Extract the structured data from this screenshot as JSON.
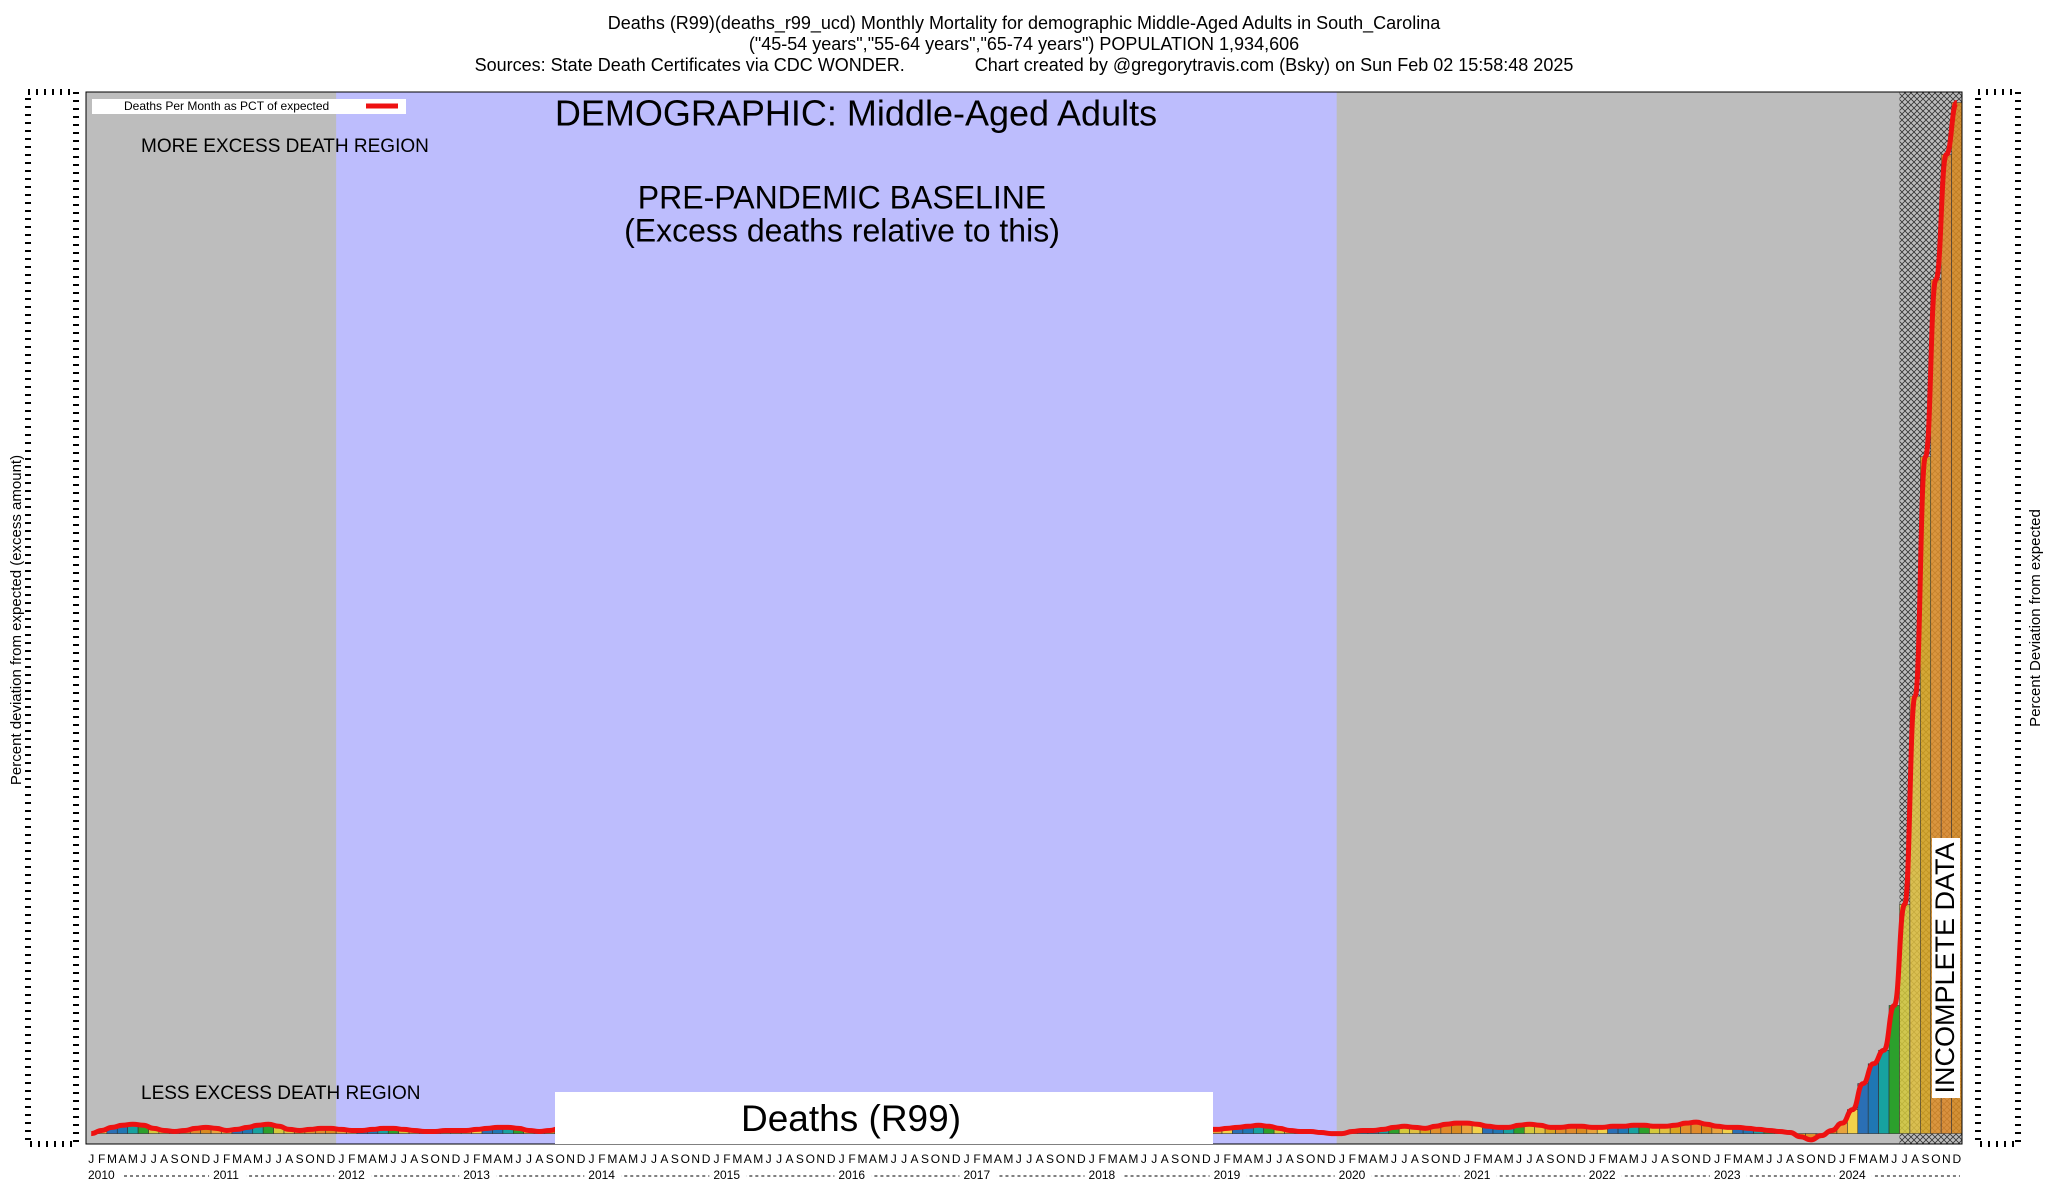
{
  "chart_data": {
    "type": "line",
    "title_lines": [
      "Deaths (R99)(deaths_r99_ucd) Monthly Mortality for demographic Middle-Aged Adults in South_Carolina",
      "(\"45-54 years\",\"55-64 years\",\"65-74 years\") POPULATION 1,934,606",
      "Sources: State Death Certificates via CDC WONDER.              Chart created by @gregorytravis.com (Bsky) on Sun Feb 02 15:58:48 2025"
    ],
    "y_label": "Percent deviation from expected (excess amount)",
    "y2_label": "Percent Deviation from expected",
    "legend_label": "Deaths Per Month as PCT of expected",
    "annotations": {
      "demographic": "DEMOGRAPHIC: Middle-Aged Adults",
      "more": "MORE EXCESS DEATH REGION",
      "baseline_1": "PRE-PANDEMIC BASELINE",
      "baseline_2": "(Excess deaths relative to this)",
      "less": "LESS EXCESS DEATH REGION",
      "cause": "Deaths (R99)",
      "incomplete": "INCOMPLETE DATA"
    },
    "months": [
      "J",
      "F",
      "M",
      "A",
      "M",
      "J",
      "J",
      "A",
      "S",
      "O",
      "N",
      "D"
    ],
    "years": [
      2010,
      2011,
      2012,
      2013,
      2014,
      2015,
      2016,
      2017,
      2018,
      2019,
      2020,
      2021,
      2022,
      2023,
      2024
    ],
    "regions": {
      "baseline_from": "2012-01",
      "baseline_to": "2019-12",
      "incomplete_from": "2024-07"
    },
    "line_color": "#ee1111",
    "bar_colors": [
      "#e8a33c",
      "#f2d14a",
      "#2a6fb5",
      "#1f77b4",
      "#17a2a0",
      "#2ca02c",
      "#d4c93c",
      "#e0c040",
      "#d9a520",
      "#e0902a",
      "#e08a2a",
      "#d98a20"
    ],
    "ylim": [
      -1,
      100
    ],
    "values": [
      0.0,
      0.3,
      0.6,
      0.8,
      0.9,
      0.8,
      0.5,
      0.3,
      0.2,
      0.3,
      0.5,
      0.6,
      0.5,
      0.3,
      0.4,
      0.6,
      0.8,
      0.9,
      0.7,
      0.4,
      0.3,
      0.4,
      0.5,
      0.5,
      0.4,
      0.3,
      0.3,
      0.4,
      0.5,
      0.5,
      0.4,
      0.3,
      0.2,
      0.2,
      0.3,
      0.3,
      0.3,
      0.4,
      0.5,
      0.6,
      0.6,
      0.5,
      0.3,
      0.2,
      0.3,
      0.5,
      0.7,
      0.8,
      0.7,
      0.5,
      0.3,
      0.2,
      0.2,
      0.3,
      0.4,
      0.5,
      0.4,
      0.3,
      0.2,
      0.2,
      0.2,
      0.3,
      0.4,
      0.4,
      0.3,
      0.2,
      0.1,
      0.1,
      0.2,
      0.3,
      0.3,
      0.2,
      0.1,
      0.0,
      -0.2,
      -0.4,
      -0.3,
      0.0,
      0.2,
      0.3,
      0.3,
      0.2,
      0.2,
      0.3,
      0.3,
      0.2,
      0.2,
      0.3,
      0.4,
      0.4,
      0.3,
      0.2,
      0.2,
      0.3,
      0.4,
      0.4,
      0.3,
      0.2,
      0.2,
      0.3,
      0.4,
      0.5,
      0.5,
      0.4,
      0.3,
      0.3,
      0.4,
      0.4,
      0.4,
      0.5,
      0.6,
      0.7,
      0.8,
      0.7,
      0.5,
      0.3,
      0.2,
      0.2,
      0.1,
      0.0,
      0.0,
      0.2,
      0.3,
      0.3,
      0.4,
      0.6,
      0.7,
      0.6,
      0.5,
      0.7,
      0.9,
      1.0,
      1.0,
      0.9,
      0.7,
      0.6,
      0.6,
      0.8,
      0.9,
      0.8,
      0.6,
      0.6,
      0.7,
      0.7,
      0.6,
      0.6,
      0.7,
      0.7,
      0.8,
      0.8,
      0.7,
      0.7,
      0.8,
      1.0,
      1.1,
      0.9,
      0.7,
      0.6,
      0.6,
      0.5,
      0.4,
      0.3,
      0.2,
      0.1,
      -0.3,
      -0.6,
      -0.2,
      0.3,
      1.0,
      2.3,
      4.8,
      6.7,
      8.0,
      12.3,
      22,
      42,
      65,
      82,
      94,
      99
    ]
  }
}
